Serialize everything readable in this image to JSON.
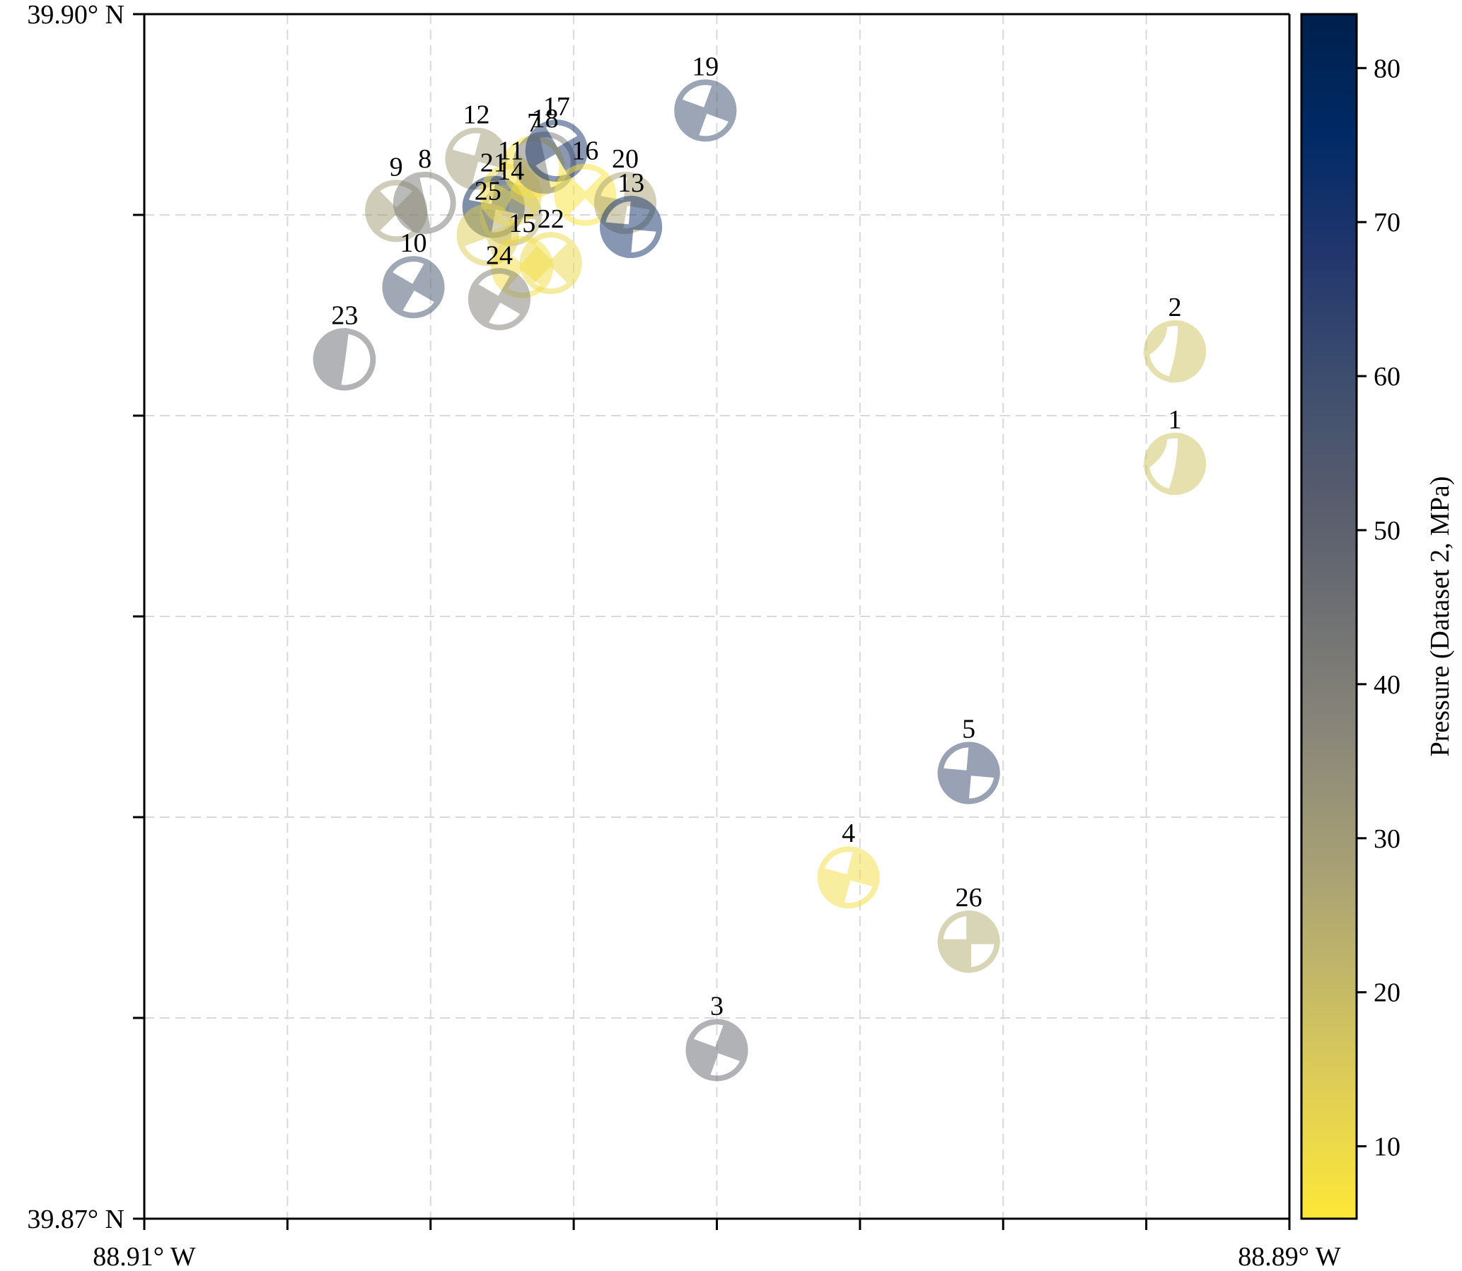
{
  "chart_data": {
    "type": "scatter",
    "subtype": "focal-mechanism beachball map",
    "title": "",
    "xlabel": "",
    "ylabel": "",
    "xlim": [
      -88.91,
      -88.89
    ],
    "ylim": [
      39.87,
      39.9
    ],
    "x_ticks": [
      -88.91,
      -88.9075,
      -88.905,
      -88.9025,
      -88.9,
      -88.8975,
      -88.895,
      -88.8925,
      -88.89
    ],
    "x_tick_labels": {
      "first": "88.91° W",
      "last": "88.89° W"
    },
    "y_ticks": [
      39.87,
      39.875,
      39.88,
      39.885,
      39.89,
      39.895,
      39.9
    ],
    "y_tick_labels": {
      "first": "39.87° N",
      "last": "39.90° N"
    },
    "grid": true,
    "colorbar": {
      "label": "Pressure (Dataset 2, MPa)",
      "colormap": "cividis (reversed)",
      "range": [
        5.3,
        83.5
      ],
      "ticks": [
        10,
        20,
        30,
        40,
        50,
        60,
        70,
        80
      ],
      "tick_labels": [
        "10",
        "20",
        "30",
        "40",
        "50",
        "60",
        "70",
        "80"
      ],
      "position": "right"
    },
    "events": [
      {
        "id": "1",
        "lon": -88.892,
        "lat": 39.8888,
        "pressure": 18,
        "strike": 100,
        "type": "reverse"
      },
      {
        "id": "2",
        "lon": -88.892,
        "lat": 39.8916,
        "pressure": 18,
        "strike": 100,
        "type": "reverse"
      },
      {
        "id": "3",
        "lon": -88.9,
        "lat": 39.8742,
        "pressure": 48,
        "strike": 20,
        "type": "strike-slip"
      },
      {
        "id": "4",
        "lon": -88.8977,
        "lat": 39.8785,
        "pressure": 8,
        "strike": 15,
        "type": "strike-slip"
      },
      {
        "id": "5",
        "lon": -88.8956,
        "lat": 39.8811,
        "pressure": 62,
        "strike": 5,
        "type": "strike-slip"
      },
      {
        "id": "26",
        "lon": -88.8956,
        "lat": 39.8769,
        "pressure": 25,
        "strike": 0,
        "type": "strike-slip"
      },
      {
        "id": "19",
        "lon": -88.9002,
        "lat": 39.8976,
        "pressure": 60,
        "strike": 20,
        "type": "strike-slip"
      },
      {
        "id": "23",
        "lon": -88.9065,
        "lat": 39.8914,
        "pressure": 47,
        "strike": 120,
        "type": "oblique"
      },
      {
        "id": "10",
        "lon": -88.9053,
        "lat": 39.8932,
        "pressure": 57,
        "strike": 30,
        "type": "strike-slip"
      },
      {
        "id": "9",
        "lon": -88.9056,
        "lat": 39.8951,
        "pressure": 30,
        "strike": 45,
        "type": "strike-slip"
      },
      {
        "id": "8",
        "lon": -88.9051,
        "lat": 39.8953,
        "pressure": 42,
        "strike": 100,
        "type": "oblique"
      },
      {
        "id": "12",
        "lon": -88.9042,
        "lat": 39.8964,
        "pressure": 30,
        "strike": 15,
        "type": "strike-slip"
      },
      {
        "id": "21",
        "lon": -88.9039,
        "lat": 39.8952,
        "pressure": 83,
        "strike": 10,
        "type": "strike-slip"
      },
      {
        "id": "14",
        "lon": -88.9036,
        "lat": 39.895,
        "pressure": 25,
        "strike": 5,
        "type": "strike-slip"
      },
      {
        "id": "11",
        "lon": -88.9036,
        "lat": 39.8955,
        "pressure": 10,
        "strike": 30,
        "type": "strike-slip"
      },
      {
        "id": "25",
        "lon": -88.904,
        "lat": 39.8945,
        "pressure": 14,
        "strike": 70,
        "type": "strike-slip"
      },
      {
        "id": "7",
        "lon": -88.9032,
        "lat": 39.8962,
        "pressure": 7,
        "strike": 60,
        "type": "oblique"
      },
      {
        "id": "18",
        "lon": -88.903,
        "lat": 39.8963,
        "pressure": 42,
        "strike": 100,
        "type": "oblique"
      },
      {
        "id": "17",
        "lon": -88.9028,
        "lat": 39.8966,
        "pressure": 70,
        "strike": 60,
        "type": "strike-slip"
      },
      {
        "id": "16",
        "lon": -88.9023,
        "lat": 39.8955,
        "pressure": 6,
        "strike": 45,
        "type": "strike-slip"
      },
      {
        "id": "20",
        "lon": -88.9016,
        "lat": 39.8953,
        "pressure": 28,
        "strike": 10,
        "type": "strike-slip"
      },
      {
        "id": "13",
        "lon": -88.9015,
        "lat": 39.8947,
        "pressure": 72,
        "strike": 5,
        "type": "strike-slip"
      },
      {
        "id": "22",
        "lon": -88.9029,
        "lat": 39.8938,
        "pressure": 10,
        "strike": 45,
        "type": "strike-slip"
      },
      {
        "id": "15",
        "lon": -88.9034,
        "lat": 39.8937,
        "pressure": 8,
        "strike": 40,
        "type": "strike-slip"
      },
      {
        "id": "24",
        "lon": -88.9038,
        "lat": 39.8929,
        "pressure": 40,
        "strike": 30,
        "type": "strike-slip"
      }
    ]
  }
}
